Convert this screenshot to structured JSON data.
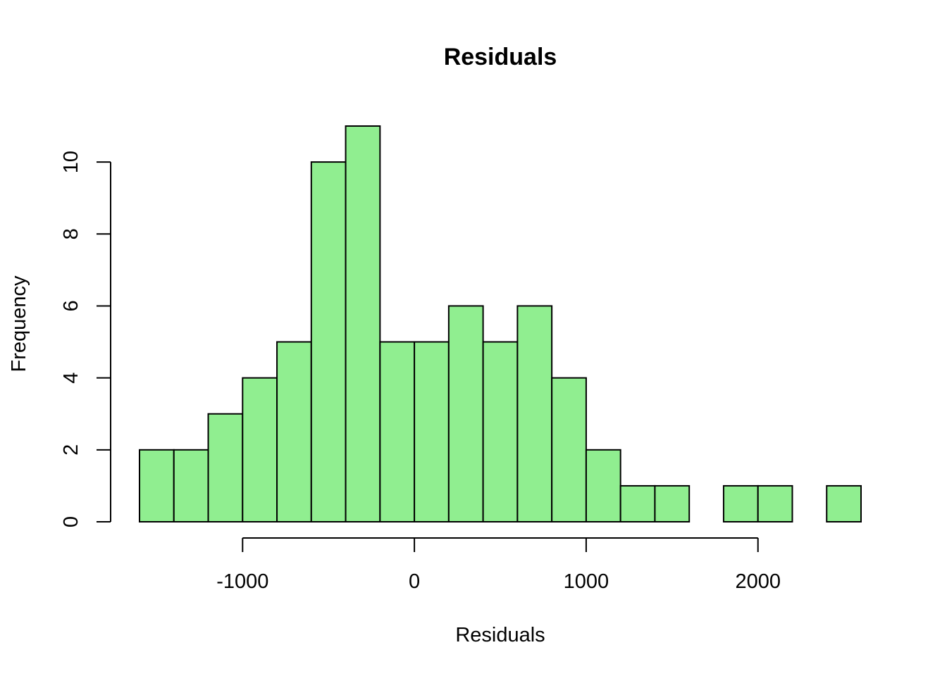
{
  "chart_data": {
    "type": "histogram",
    "title": "Residuals",
    "xlabel": "Residuals",
    "ylabel": "Frequency",
    "bin_width": 200,
    "bins": [
      {
        "x0": -1600,
        "x1": -1400,
        "count": 2
      },
      {
        "x0": -1400,
        "x1": -1200,
        "count": 2
      },
      {
        "x0": -1200,
        "x1": -1000,
        "count": 3
      },
      {
        "x0": -1000,
        "x1": -800,
        "count": 4
      },
      {
        "x0": -800,
        "x1": -600,
        "count": 5
      },
      {
        "x0": -600,
        "x1": -400,
        "count": 10
      },
      {
        "x0": -400,
        "x1": -200,
        "count": 11
      },
      {
        "x0": -200,
        "x1": 0,
        "count": 5
      },
      {
        "x0": 0,
        "x1": 200,
        "count": 5
      },
      {
        "x0": 200,
        "x1": 400,
        "count": 6
      },
      {
        "x0": 400,
        "x1": 600,
        "count": 5
      },
      {
        "x0": 600,
        "x1": 800,
        "count": 6
      },
      {
        "x0": 800,
        "x1": 1000,
        "count": 4
      },
      {
        "x0": 1000,
        "x1": 1200,
        "count": 2
      },
      {
        "x0": 1200,
        "x1": 1400,
        "count": 1
      },
      {
        "x0": 1400,
        "x1": 1600,
        "count": 1
      },
      {
        "x0": 1600,
        "x1": 1800,
        "count": 0
      },
      {
        "x0": 1800,
        "x1": 2000,
        "count": 1
      },
      {
        "x0": 2000,
        "x1": 2200,
        "count": 1
      },
      {
        "x0": 2200,
        "x1": 2400,
        "count": 0
      },
      {
        "x0": 2400,
        "x1": 2600,
        "count": 1
      }
    ],
    "xlim": [
      -1600,
      2600
    ],
    "ylim": [
      0,
      11
    ],
    "x_ticks": [
      -1000,
      0,
      1000,
      2000
    ],
    "x_tick_labels": [
      "-1000",
      "0",
      "1000",
      "2000"
    ],
    "y_ticks": [
      0,
      2,
      4,
      6,
      8,
      10
    ],
    "y_tick_labels": [
      "0",
      "2",
      "4",
      "6",
      "8",
      "10"
    ],
    "grid": false,
    "bar_color": "#90EE90",
    "bar_border_color": "#000000"
  }
}
